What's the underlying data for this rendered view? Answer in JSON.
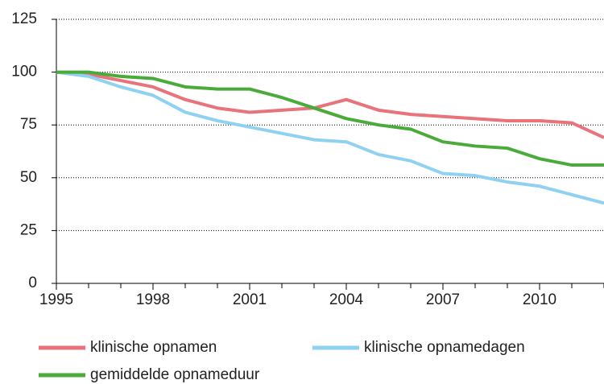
{
  "chart_data": {
    "type": "line",
    "x": [
      1995,
      1996,
      1997,
      1998,
      1999,
      2000,
      2001,
      2002,
      2003,
      2004,
      2005,
      2006,
      2007,
      2008,
      2009,
      2010,
      2011,
      2012
    ],
    "series": [
      {
        "name": "klinische opnamen",
        "color": "#e8737a",
        "values": [
          100,
          99,
          96,
          93,
          87,
          83,
          81,
          82,
          83,
          87,
          82,
          80,
          79,
          78,
          77,
          77,
          76,
          69
        ]
      },
      {
        "name": "klinische opnamedagen",
        "color": "#8fd1f0",
        "values": [
          100,
          98,
          93,
          89,
          81,
          77,
          74,
          71,
          68,
          67,
          61,
          58,
          52,
          51,
          48,
          46,
          42,
          38
        ]
      },
      {
        "name": "gemiddelde opnameduur",
        "color": "#4aab3a",
        "values": [
          100,
          100,
          98,
          97,
          93,
          92,
          92,
          88,
          83,
          78,
          75,
          73,
          67,
          65,
          64,
          59,
          56,
          56
        ]
      }
    ],
    "xlim": [
      1995,
      2012
    ],
    "xticks": [
      1995,
      1998,
      2001,
      2004,
      2007,
      2010
    ],
    "ylim": [
      0,
      125
    ],
    "yticks": [
      0,
      25,
      50,
      75,
      100,
      125
    ],
    "grid": true
  }
}
